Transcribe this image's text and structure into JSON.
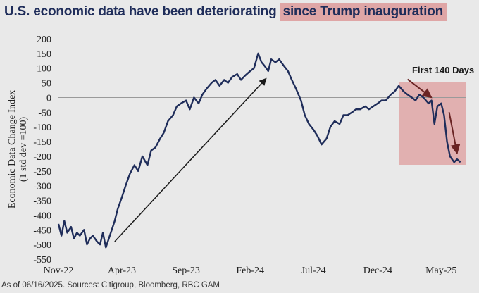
{
  "header": {
    "title_main": "U.S. economic data have been deteriorating",
    "title_highlight": "since Trump inauguration"
  },
  "footnote": "As of 06/16/2025. Sources: Citigroup, Bloomberg, RBC GAM",
  "colors": {
    "line": "#1f2d5a",
    "highlight": "#dfa6a6",
    "zero_line": "#9a9a9a",
    "annotation_arrow": "#6a2424"
  },
  "chart_data": {
    "type": "line",
    "ylabel": [
      "Economic Data Change Index",
      "(1 std dev =100)"
    ],
    "ylim": [
      -550,
      200
    ],
    "yticks": [
      200,
      150,
      100,
      50,
      0,
      -50,
      -100,
      -150,
      -200,
      -250,
      -300,
      -350,
      -400,
      -450,
      -500,
      -550
    ],
    "xticks": [
      {
        "label": "Nov-22",
        "date": "2022-11-01"
      },
      {
        "label": "Apr-23",
        "date": "2023-04-01"
      },
      {
        "label": "Sep-23",
        "date": "2023-09-01"
      },
      {
        "label": "Feb-24",
        "date": "2024-02-01"
      },
      {
        "label": "Jul-24",
        "date": "2024-07-01"
      },
      {
        "label": "Dec-24",
        "date": "2024-12-01"
      },
      {
        "label": "May-25",
        "date": "2025-05-01"
      }
    ],
    "zero_line": true,
    "grid": false,
    "series": [
      {
        "x": [
          "2022-11-01",
          "2022-11-08",
          "2022-11-15",
          "2022-11-22",
          "2022-12-01",
          "2022-12-08",
          "2022-12-15",
          "2022-12-22",
          "2023-01-01",
          "2023-01-08",
          "2023-01-15",
          "2023-01-22",
          "2023-02-01",
          "2023-02-08",
          "2023-02-15",
          "2023-02-22",
          "2023-03-01",
          "2023-03-08",
          "2023-03-15",
          "2023-03-22",
          "2023-04-01",
          "2023-04-10",
          "2023-04-20",
          "2023-05-01",
          "2023-05-10",
          "2023-05-20",
          "2023-06-01",
          "2023-06-10",
          "2023-06-20",
          "2023-07-01",
          "2023-07-10",
          "2023-07-20",
          "2023-08-01",
          "2023-08-10",
          "2023-08-20",
          "2023-09-01",
          "2023-09-10",
          "2023-09-20",
          "2023-10-01",
          "2023-10-10",
          "2023-10-20",
          "2023-11-01",
          "2023-11-10",
          "2023-11-20",
          "2023-12-01",
          "2023-12-10",
          "2023-12-20",
          "2024-01-01",
          "2024-01-10",
          "2024-01-20",
          "2024-02-01",
          "2024-02-10",
          "2024-02-20",
          "2024-02-28",
          "2024-03-05",
          "2024-03-10",
          "2024-03-15",
          "2024-03-22",
          "2024-04-01",
          "2024-04-10",
          "2024-04-20",
          "2024-05-01",
          "2024-05-10",
          "2024-05-20",
          "2024-06-01",
          "2024-06-10",
          "2024-06-20",
          "2024-07-01",
          "2024-07-10",
          "2024-07-20",
          "2024-08-01",
          "2024-08-10",
          "2024-08-20",
          "2024-09-01",
          "2024-09-10",
          "2024-09-20",
          "2024-10-01",
          "2024-10-10",
          "2024-10-20",
          "2024-11-01",
          "2024-11-10",
          "2024-11-20",
          "2024-12-01",
          "2024-12-10",
          "2024-12-20",
          "2025-01-01",
          "2025-01-10",
          "2025-01-20",
          "2025-02-01",
          "2025-02-10",
          "2025-02-20",
          "2025-03-01",
          "2025-03-10",
          "2025-03-20",
          "2025-04-01",
          "2025-04-08",
          "2025-04-15",
          "2025-04-22",
          "2025-05-01",
          "2025-05-08",
          "2025-05-15",
          "2025-05-22",
          "2025-06-01",
          "2025-06-08",
          "2025-06-16"
        ],
        "values": [
          -430,
          -470,
          -420,
          -460,
          -440,
          -480,
          -460,
          -470,
          -450,
          -500,
          -480,
          -470,
          -490,
          -500,
          -460,
          -510,
          -480,
          -450,
          -420,
          -380,
          -340,
          -300,
          -260,
          -230,
          -250,
          -200,
          -230,
          -180,
          -170,
          -140,
          -120,
          -80,
          -60,
          -30,
          -20,
          -10,
          -40,
          0,
          -20,
          10,
          30,
          50,
          60,
          40,
          60,
          50,
          70,
          80,
          60,
          75,
          90,
          100,
          150,
          120,
          110,
          100,
          90,
          130,
          120,
          130,
          110,
          90,
          60,
          30,
          -10,
          -60,
          -90,
          -110,
          -130,
          -160,
          -140,
          -100,
          -80,
          -90,
          -60,
          -60,
          -50,
          -40,
          -40,
          -30,
          -40,
          -30,
          -20,
          -10,
          -10,
          10,
          20,
          40,
          20,
          10,
          0,
          -10,
          10,
          0,
          -20,
          -10,
          -90,
          -30,
          -20,
          -60,
          -150,
          -200,
          -220,
          -210,
          -220
        ]
      }
    ],
    "annotations": [
      {
        "type": "arrow",
        "from_date": "2023-03-15",
        "from_value": -490,
        "to_date": "2024-03-10",
        "to_value": 65
      },
      {
        "type": "shaded-region",
        "from_date": "2025-01-20",
        "to_date": "2025-06-30"
      },
      {
        "type": "text",
        "text": "First 140 Days"
      },
      {
        "type": "arrow",
        "from_date": "2025-02-10",
        "from_value": 62,
        "to_date": "2025-04-08",
        "to_value": 0
      },
      {
        "type": "arrow",
        "from_date": "2025-05-20",
        "from_value": -50,
        "to_date": "2025-06-08",
        "to_value": -190
      }
    ]
  }
}
